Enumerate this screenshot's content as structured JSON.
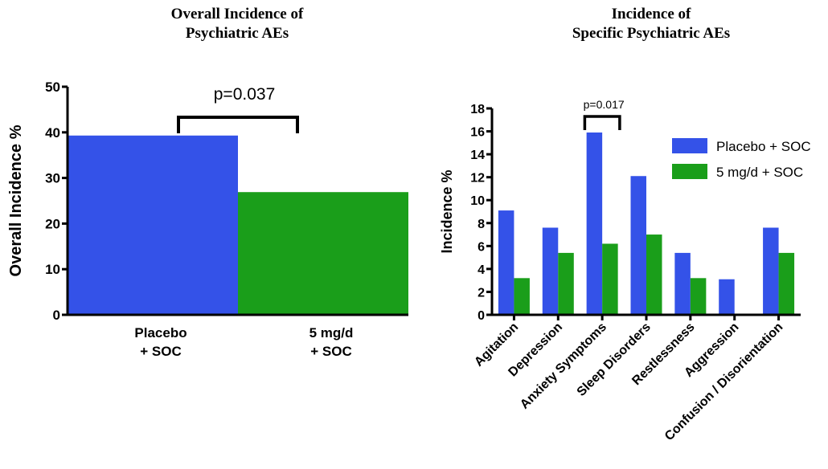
{
  "colors": {
    "placebo": "#3452e8",
    "treatment": "#1a9e1a"
  },
  "chart_data": [
    {
      "type": "bar",
      "title_lines": [
        "Overall Incidence of",
        "Psychiatric AEs"
      ],
      "ylabel": "Overall Incidence %",
      "ylim": [
        0,
        50
      ],
      "yticks": [
        "0",
        "10",
        "20",
        "30",
        "40",
        "50"
      ],
      "categories": [
        {
          "label_lines": [
            "Placebo",
            "+ SOC"
          ],
          "value": 39.3,
          "color": "#3452e8"
        },
        {
          "label_lines": [
            "5 mg/d",
            "+ SOC"
          ],
          "value": 26.9,
          "color": "#1a9e1a"
        }
      ],
      "annotation": {
        "text": "p=0.037",
        "between": [
          0,
          1
        ]
      }
    },
    {
      "type": "bar",
      "title_lines": [
        "Incidence of",
        "Specific Psychiatric AEs"
      ],
      "ylabel": "Incidence %",
      "ylim": [
        0,
        18
      ],
      "yticks": [
        "0",
        "2",
        "4",
        "6",
        "8",
        "10",
        "12",
        "14",
        "16",
        "18"
      ],
      "categories": [
        "Agitation",
        "Depression",
        "Anxiety Symptoms",
        "Sleep Disorders",
        "Restlessness",
        "Aggression",
        "Confusion / Disorientation"
      ],
      "series": [
        {
          "name": "Placebo + SOC",
          "color": "#3452e8",
          "values": [
            9.1,
            7.6,
            15.9,
            12.1,
            5.4,
            3.1,
            7.6
          ]
        },
        {
          "name": "5 mg/d + SOC",
          "color": "#1a9e1a",
          "values": [
            3.2,
            5.4,
            6.2,
            7.0,
            3.2,
            0,
            5.4
          ]
        }
      ],
      "annotation": {
        "text": "p=0.017",
        "category_index": 2
      },
      "legend_position": "top-right"
    }
  ]
}
